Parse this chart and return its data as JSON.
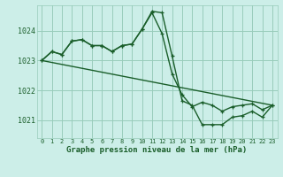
{
  "bg_color": "#cceee8",
  "grid_color": "#99ccbb",
  "line_color": "#1a5e2a",
  "title": "Graphe pression niveau de la mer (hPa)",
  "ylim": [
    1020.4,
    1024.85
  ],
  "xlim": [
    -0.5,
    23.5
  ],
  "yticks": [
    1021,
    1022,
    1023,
    1024
  ],
  "xticks": [
    0,
    1,
    2,
    3,
    4,
    5,
    6,
    7,
    8,
    9,
    10,
    11,
    12,
    13,
    14,
    15,
    16,
    17,
    18,
    19,
    20,
    21,
    22,
    23
  ],
  "series1_x": [
    0,
    1,
    2,
    3,
    4,
    5,
    6,
    7,
    8,
    9,
    10,
    11,
    12,
    13,
    14,
    15,
    16,
    17,
    18,
    19,
    20,
    21,
    22,
    23
  ],
  "series1_y": [
    1023.0,
    1023.3,
    1023.2,
    1023.65,
    1023.7,
    1023.5,
    1023.5,
    1023.3,
    1023.5,
    1023.55,
    1024.05,
    1024.65,
    1024.6,
    1023.15,
    1021.65,
    1021.5,
    1020.85,
    1020.85,
    1020.85,
    1021.1,
    1021.15,
    1021.3,
    1021.1,
    1021.5
  ],
  "series2_x": [
    0,
    1,
    2,
    3,
    4,
    5,
    6,
    7,
    8,
    9,
    10,
    11,
    12,
    13,
    14,
    15,
    16,
    17,
    18,
    19,
    20,
    21,
    22,
    23
  ],
  "series2_y": [
    1023.0,
    1023.3,
    1023.2,
    1023.65,
    1023.7,
    1023.5,
    1023.5,
    1023.3,
    1023.5,
    1023.55,
    1024.05,
    1024.6,
    1023.9,
    1022.55,
    1021.85,
    1021.45,
    1021.6,
    1021.5,
    1021.3,
    1021.45,
    1021.5,
    1021.55,
    1021.35,
    1021.5
  ],
  "series3_x": [
    0,
    23
  ],
  "series3_y": [
    1023.0,
    1021.5
  ]
}
